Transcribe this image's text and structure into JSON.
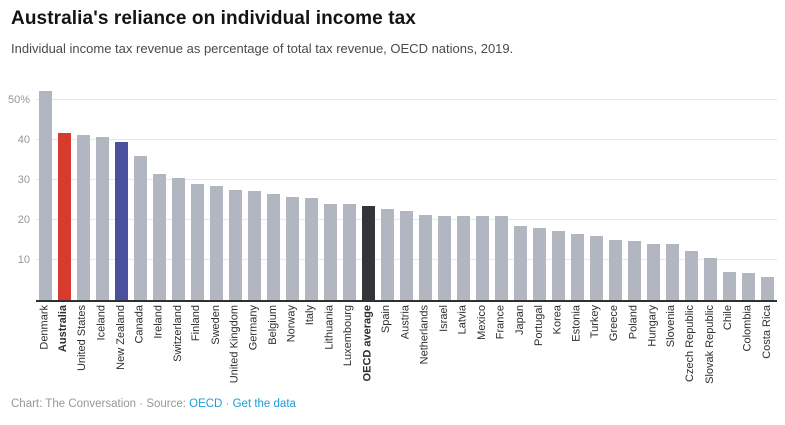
{
  "header": {
    "title": "Australia's reliance on individual income tax",
    "subtitle": "Individual income tax revenue as percentage of total tax revenue, OECD nations, 2019."
  },
  "footer": {
    "credit": "Chart: The Conversation",
    "separator": " · ",
    "source_label": "Source: ",
    "source_link": "OECD",
    "data_link": "Get the data"
  },
  "chart_data": {
    "type": "bar",
    "title": "Australia's reliance on individual income tax",
    "subtitle": "Individual income tax revenue as percentage of total tax revenue, OECD nations, 2019.",
    "xlabel": "",
    "ylabel": "",
    "ylim": [
      0,
      53
    ],
    "grid": true,
    "legend_position": "none",
    "yticks": [
      {
        "value": 10,
        "label": "10"
      },
      {
        "value": 20,
        "label": "20"
      },
      {
        "value": 30,
        "label": "30"
      },
      {
        "value": 40,
        "label": "40"
      },
      {
        "value": 50,
        "label": "50%"
      }
    ],
    "palette": {
      "default": "#b2b6c0",
      "red": "#d63b2e",
      "blue": "#4a50a0",
      "dark": "#333638"
    },
    "points": [
      {
        "label": "Denmark",
        "value": 52.2,
        "color": "default",
        "bold": false
      },
      {
        "label": "Australia",
        "value": 41.8,
        "color": "red",
        "bold": true
      },
      {
        "label": "United States",
        "value": 41.2,
        "color": "default",
        "bold": false
      },
      {
        "label": "Iceland",
        "value": 40.8,
        "color": "default",
        "bold": false
      },
      {
        "label": "New Zealand",
        "value": 39.4,
        "color": "blue",
        "bold": false
      },
      {
        "label": "Canada",
        "value": 36.0,
        "color": "default",
        "bold": false
      },
      {
        "label": "Ireland",
        "value": 31.5,
        "color": "default",
        "bold": false
      },
      {
        "label": "Switzerland",
        "value": 30.5,
        "color": "default",
        "bold": false
      },
      {
        "label": "Finland",
        "value": 28.9,
        "color": "default",
        "bold": false
      },
      {
        "label": "Sweden",
        "value": 28.5,
        "color": "default",
        "bold": false
      },
      {
        "label": "United Kingdom",
        "value": 27.4,
        "color": "default",
        "bold": false
      },
      {
        "label": "Germany",
        "value": 27.2,
        "color": "default",
        "bold": false
      },
      {
        "label": "Belgium",
        "value": 26.4,
        "color": "default",
        "bold": false
      },
      {
        "label": "Norway",
        "value": 25.7,
        "color": "default",
        "bold": false
      },
      {
        "label": "Italy",
        "value": 25.5,
        "color": "default",
        "bold": false
      },
      {
        "label": "Lithuania",
        "value": 24.0,
        "color": "default",
        "bold": false
      },
      {
        "label": "Luxembourg",
        "value": 23.9,
        "color": "default",
        "bold": false
      },
      {
        "label": "OECD average",
        "value": 23.5,
        "color": "dark",
        "bold": true
      },
      {
        "label": "Spain",
        "value": 22.7,
        "color": "default",
        "bold": false
      },
      {
        "label": "Austria",
        "value": 22.3,
        "color": "default",
        "bold": false
      },
      {
        "label": "Netherlands",
        "value": 21.2,
        "color": "default",
        "bold": false
      },
      {
        "label": "Israel",
        "value": 21.0,
        "color": "default",
        "bold": false
      },
      {
        "label": "Latvia",
        "value": 20.9,
        "color": "default",
        "bold": false
      },
      {
        "label": "Mexico",
        "value": 20.9,
        "color": "default",
        "bold": false
      },
      {
        "label": "France",
        "value": 20.9,
        "color": "default",
        "bold": false
      },
      {
        "label": "Japan",
        "value": 18.5,
        "color": "default",
        "bold": false
      },
      {
        "label": "Portugal",
        "value": 17.9,
        "color": "default",
        "bold": false
      },
      {
        "label": "Korea",
        "value": 17.3,
        "color": "default",
        "bold": false
      },
      {
        "label": "Estonia",
        "value": 16.5,
        "color": "default",
        "bold": false
      },
      {
        "label": "Turkey",
        "value": 16.0,
        "color": "default",
        "bold": false
      },
      {
        "label": "Greece",
        "value": 15.1,
        "color": "default",
        "bold": false
      },
      {
        "label": "Poland",
        "value": 14.8,
        "color": "default",
        "bold": false
      },
      {
        "label": "Hungary",
        "value": 14.1,
        "color": "default",
        "bold": false
      },
      {
        "label": "Slovenia",
        "value": 14.1,
        "color": "default",
        "bold": false
      },
      {
        "label": "Czech Republic",
        "value": 12.2,
        "color": "default",
        "bold": false
      },
      {
        "label": "Slovak Republic",
        "value": 10.5,
        "color": "default",
        "bold": false
      },
      {
        "label": "Chile",
        "value": 6.9,
        "color": "default",
        "bold": false
      },
      {
        "label": "Colombia",
        "value": 6.8,
        "color": "default",
        "bold": false
      },
      {
        "label": "Costa Rica",
        "value": 5.8,
        "color": "default",
        "bold": false
      }
    ]
  }
}
